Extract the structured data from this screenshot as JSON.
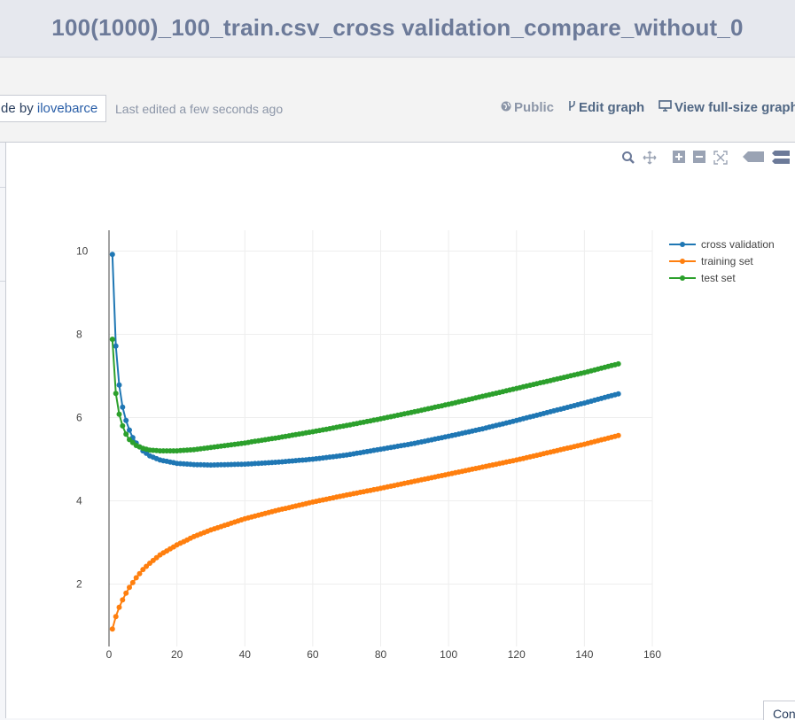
{
  "header": {
    "title": "100(1000)_100_train.csv_cross validation_compare_without_0"
  },
  "info_bar": {
    "made_by_prefix": "de by ",
    "made_by_user": "ilovebarce",
    "last_edited": "Last edited a few seconds ago",
    "public_label": "Public",
    "edit_graph_label": "Edit graph",
    "view_full_label": "View full-size graph"
  },
  "modebar": {
    "icons": [
      "zoom-icon",
      "pan-icon",
      "zoom-in-icon",
      "zoom-out-icon",
      "autoscale-icon",
      "hover-closest-icon",
      "hover-compare-icon"
    ]
  },
  "corner_tab": {
    "label": "Con"
  },
  "colors": {
    "cross_validation": "#1f77b4",
    "training_set": "#ff7f0e",
    "test_set": "#2ca02c",
    "text": "#444444",
    "grid": "#eeeeee"
  },
  "chart_data": {
    "type": "line",
    "title": "",
    "xlabel": "",
    "ylabel": "",
    "xlim": [
      0,
      160
    ],
    "ylim": [
      0.5,
      10.5
    ],
    "x_ticks": [
      0,
      20,
      40,
      60,
      80,
      100,
      120,
      140,
      160
    ],
    "y_ticks": [
      2,
      4,
      6,
      8,
      10
    ],
    "grid": true,
    "legend_position": "top-right",
    "x": {
      "start": 1,
      "end": 150,
      "step": 1
    },
    "series": [
      {
        "name": "cross validation",
        "anchors": [
          [
            1,
            9.92
          ],
          [
            2,
            7.72
          ],
          [
            3,
            6.78
          ],
          [
            4,
            6.25
          ],
          [
            5,
            5.93
          ],
          [
            6,
            5.7
          ],
          [
            7,
            5.52
          ],
          [
            8,
            5.39
          ],
          [
            10,
            5.2
          ],
          [
            12,
            5.08
          ],
          [
            15,
            4.98
          ],
          [
            20,
            4.9
          ],
          [
            25,
            4.87
          ],
          [
            30,
            4.86
          ],
          [
            40,
            4.88
          ],
          [
            50,
            4.93
          ],
          [
            60,
            5.0
          ],
          [
            70,
            5.1
          ],
          [
            80,
            5.24
          ],
          [
            90,
            5.38
          ],
          [
            100,
            5.55
          ],
          [
            110,
            5.73
          ],
          [
            120,
            5.93
          ],
          [
            130,
            6.14
          ],
          [
            140,
            6.35
          ],
          [
            150,
            6.57
          ]
        ]
      },
      {
        "name": "training set",
        "anchors": [
          [
            1,
            0.92
          ],
          [
            2,
            1.22
          ],
          [
            3,
            1.44
          ],
          [
            4,
            1.62
          ],
          [
            5,
            1.78
          ],
          [
            6,
            1.92
          ],
          [
            8,
            2.15
          ],
          [
            10,
            2.35
          ],
          [
            12,
            2.5
          ],
          [
            15,
            2.7
          ],
          [
            20,
            2.94
          ],
          [
            25,
            3.14
          ],
          [
            30,
            3.3
          ],
          [
            40,
            3.57
          ],
          [
            50,
            3.78
          ],
          [
            60,
            3.97
          ],
          [
            70,
            4.14
          ],
          [
            80,
            4.3
          ],
          [
            90,
            4.47
          ],
          [
            100,
            4.64
          ],
          [
            110,
            4.81
          ],
          [
            120,
            4.98
          ],
          [
            130,
            5.17
          ],
          [
            140,
            5.36
          ],
          [
            150,
            5.57
          ]
        ]
      },
      {
        "name": "test set",
        "anchors": [
          [
            1,
            7.88
          ],
          [
            2,
            6.58
          ],
          [
            3,
            6.08
          ],
          [
            4,
            5.8
          ],
          [
            5,
            5.6
          ],
          [
            6,
            5.47
          ],
          [
            7,
            5.4
          ],
          [
            8,
            5.33
          ],
          [
            10,
            5.26
          ],
          [
            12,
            5.22
          ],
          [
            15,
            5.2
          ],
          [
            20,
            5.2
          ],
          [
            25,
            5.23
          ],
          [
            30,
            5.28
          ],
          [
            40,
            5.39
          ],
          [
            50,
            5.52
          ],
          [
            60,
            5.66
          ],
          [
            70,
            5.81
          ],
          [
            80,
            5.97
          ],
          [
            90,
            6.14
          ],
          [
            100,
            6.32
          ],
          [
            110,
            6.51
          ],
          [
            120,
            6.7
          ],
          [
            130,
            6.89
          ],
          [
            140,
            7.08
          ],
          [
            150,
            7.29
          ]
        ]
      }
    ]
  }
}
